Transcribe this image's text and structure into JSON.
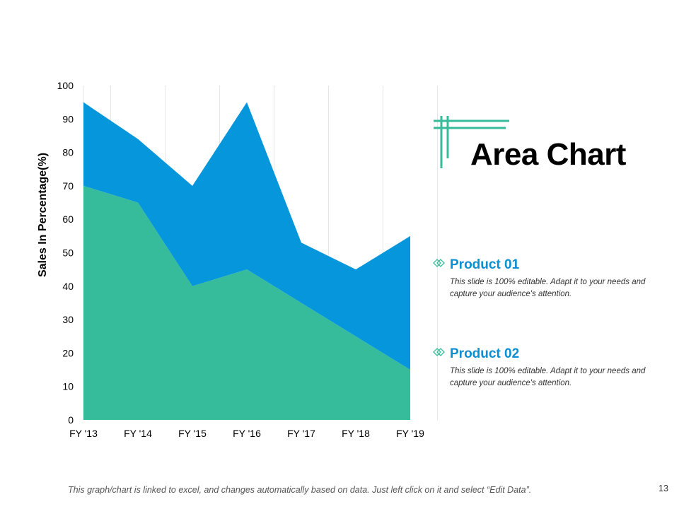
{
  "slide": {
    "title": "Area Chart",
    "footer": "This graph/chart is linked to excel, and changes automatically based on data. Just left click on it and select “Edit Data”.",
    "page_number": "13"
  },
  "legend": [
    {
      "name": "Product 01",
      "description": "This slide is 100% editable. Adapt it to your needs and capture your audience's attention.",
      "color": "#0a8fd4"
    },
    {
      "name": "Product 02",
      "description": "This slide is 100% editable. Adapt it to your needs and capture your audience's attention.",
      "color": "#0a8fd4"
    }
  ],
  "colors": {
    "product_01": "#0596dc",
    "product_02": "#37bc9b",
    "accent": "#37bc9b",
    "grid": "#e6e6e6"
  },
  "chart_data": {
    "type": "area",
    "stacked": true,
    "title": "",
    "xlabel": "",
    "ylabel": "Sales In Percentage(%)",
    "categories": [
      "FY '13",
      "FY '14",
      "FY '15",
      "FY '16",
      "FY '17",
      "FY '18",
      "FY '19"
    ],
    "ylim": [
      0,
      100
    ],
    "yticks": [
      0,
      10,
      20,
      30,
      40,
      50,
      60,
      70,
      80,
      90,
      100
    ],
    "grid": "vertical",
    "series": [
      {
        "name": "Product 02",
        "values": [
          70,
          65,
          40,
          45,
          35,
          25,
          15
        ]
      },
      {
        "name": "Product 01",
        "values": [
          25,
          19,
          30,
          50,
          18,
          20,
          40
        ]
      }
    ]
  }
}
